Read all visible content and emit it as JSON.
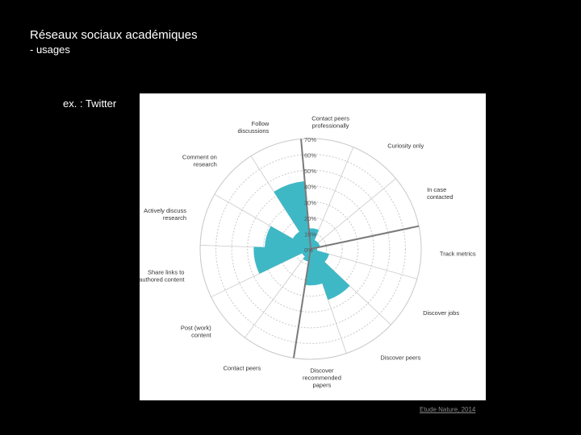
{
  "slide": {
    "title": "Réseaux sociaux académiques",
    "subtitle": "- usages",
    "example_label": "ex. : Twitter",
    "citation": "Etude Nature, 2014"
  },
  "chart_data": {
    "type": "polar-area",
    "title": "",
    "unit": "%",
    "rlim": [
      0,
      70
    ],
    "radial_ticks": [
      0,
      10,
      20,
      30,
      40,
      50,
      60,
      70
    ],
    "radial_tick_labels": [
      "0%",
      "10%",
      "20%",
      "30%",
      "40%",
      "50%",
      "60%",
      "70%"
    ],
    "grid": true,
    "fill_color": "#3fb8c6",
    "grid_color": "#c8c8c8",
    "spoke_color": "#7a7a7a",
    "categories": [
      "Contact peers professionally",
      "Curiosity only",
      "In case contacted",
      "Track metrics",
      "Discover jobs",
      "Discover peers",
      "Discover recommended papers",
      "Contact peers",
      "Post (work) content",
      "Share links to authored content",
      "Actively discuss research",
      "Comment on research",
      "Follow discussions"
    ],
    "values": [
      13,
      6,
      6,
      4,
      12,
      34,
      23,
      8,
      6,
      36,
      29,
      13,
      43
    ],
    "highlighted_spokes": [
      {
        "category_index": 0,
        "value": 70
      },
      {
        "category_index": 3,
        "value": 70
      },
      {
        "category_index": 7,
        "value": 70
      }
    ]
  }
}
